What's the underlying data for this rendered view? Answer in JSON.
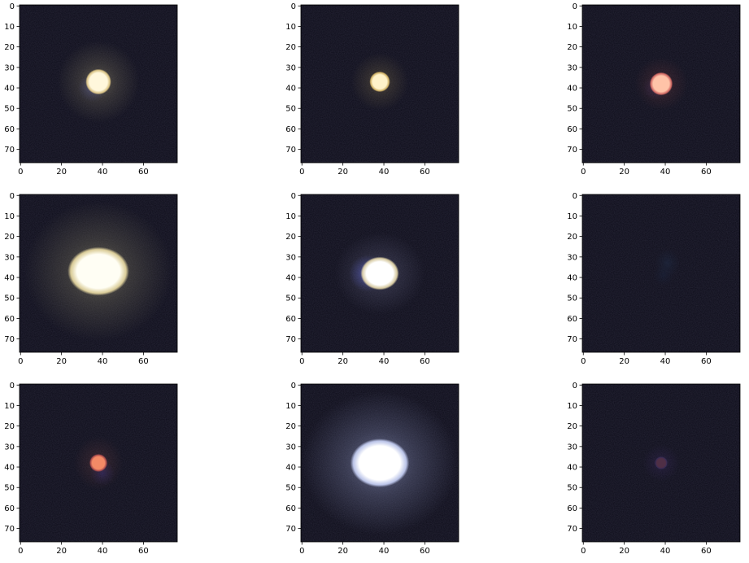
{
  "figure": {
    "rows": 3,
    "cols": 3,
    "image_size": 77,
    "background": "#0c0b18",
    "x_ticks": [
      0,
      20,
      40,
      60
    ],
    "y_ticks": [
      0,
      10,
      20,
      30,
      40,
      50,
      60,
      70
    ],
    "panels": [
      {
        "row": 0,
        "col": 0,
        "glow": {
          "x": 38,
          "y": 37,
          "rx": 20,
          "ry": 20,
          "color": "#8c8467",
          "opacity": 0.55
        },
        "offset_glow": {
          "x": 35,
          "y": 40,
          "r": 7,
          "color": "#5a62c8",
          "opacity": 0.35
        },
        "core": {
          "x": 38,
          "y": 37,
          "rx": 5,
          "ry": 5,
          "color": "#fff7dc",
          "edge": "#f2d88f"
        }
      },
      {
        "row": 0,
        "col": 1,
        "glow": {
          "x": 38,
          "y": 37,
          "rx": 14,
          "ry": 14,
          "color": "#8b7a50",
          "opacity": 0.45
        },
        "offset_glow": null,
        "core": {
          "x": 38,
          "y": 37,
          "rx": 4,
          "ry": 4,
          "color": "#fff2c9",
          "edge": "#e8c56d"
        }
      },
      {
        "row": 0,
        "col": 2,
        "glow": {
          "x": 38,
          "y": 38,
          "rx": 13,
          "ry": 13,
          "color": "#7a3e3e",
          "opacity": 0.45
        },
        "offset_glow": {
          "x": 35,
          "y": 40,
          "r": 6,
          "color": "#5a3f8a",
          "opacity": 0.3
        },
        "core": {
          "x": 38,
          "y": 38,
          "rx": 4.5,
          "ry": 4.5,
          "color": "#ffc3a8",
          "edge": "#e8726a"
        }
      },
      {
        "row": 1,
        "col": 0,
        "glow": {
          "x": 38,
          "y": 37,
          "rx": 36,
          "ry": 34,
          "color": "#8f8a6c",
          "opacity": 0.6
        },
        "offset_glow": null,
        "core": {
          "x": 38,
          "y": 37,
          "rx": 12,
          "ry": 9.5,
          "color": "#fffef4",
          "edge": "#f4e4a8"
        }
      },
      {
        "row": 1,
        "col": 1,
        "glow": {
          "x": 38,
          "y": 38,
          "rx": 22,
          "ry": 20,
          "color": "#6e6f8f",
          "opacity": 0.5
        },
        "offset_glow": {
          "x": 32,
          "y": 38,
          "r": 9,
          "color": "#6f79ff",
          "opacity": 0.55
        },
        "core": {
          "x": 38,
          "y": 38,
          "rx": 7.5,
          "ry": 6.5,
          "color": "#ffffff",
          "edge": "#f2e3b0"
        }
      },
      {
        "row": 1,
        "col": 2,
        "glow": {
          "x": 41,
          "y": 33,
          "rx": 6,
          "ry": 7,
          "color": "#1f2c46",
          "opacity": 0.55
        },
        "offset_glow": {
          "x": 39,
          "y": 39,
          "r": 5,
          "color": "#1b2540",
          "opacity": 0.45
        },
        "core": null
      },
      {
        "row": 2,
        "col": 0,
        "glow": {
          "x": 38,
          "y": 38,
          "rx": 12,
          "ry": 13,
          "color": "#6e4040",
          "opacity": 0.45
        },
        "offset_glow": {
          "x": 40,
          "y": 43,
          "r": 6,
          "color": "#3a3080",
          "opacity": 0.45
        },
        "core": {
          "x": 38,
          "y": 38,
          "rx": 3.5,
          "ry": 3.5,
          "color": "#f38a66",
          "edge": "#b84f4f"
        }
      },
      {
        "row": 2,
        "col": 1,
        "glow": {
          "x": 38,
          "y": 38,
          "rx": 38,
          "ry": 35,
          "color": "#8b93bd",
          "opacity": 0.65
        },
        "offset_glow": null,
        "core": {
          "x": 38,
          "y": 38,
          "rx": 11.5,
          "ry": 9.5,
          "color": "#ffffff",
          "edge": "#cfd9ff"
        }
      },
      {
        "row": 2,
        "col": 2,
        "glow": {
          "x": 38,
          "y": 38,
          "rx": 9,
          "ry": 9,
          "color": "#3a2a5e",
          "opacity": 0.5
        },
        "offset_glow": null,
        "core": {
          "x": 38,
          "y": 38,
          "rx": 2.5,
          "ry": 2.5,
          "color": "#4f2f46",
          "edge": "#3a2d5a"
        }
      }
    ]
  }
}
